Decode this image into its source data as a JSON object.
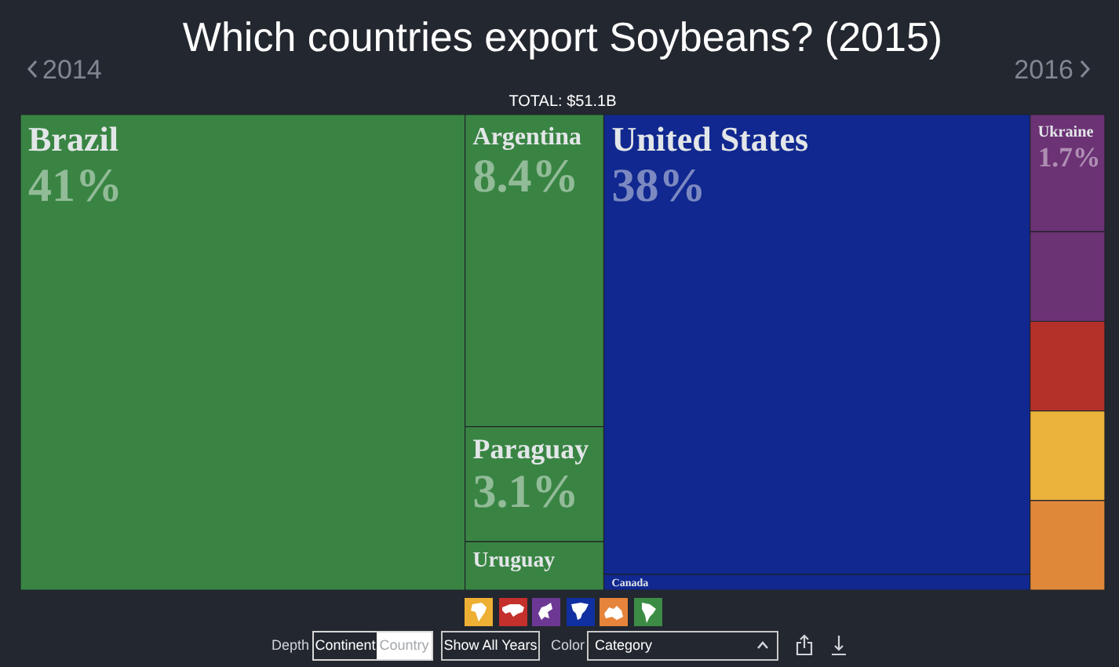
{
  "chart_data": {
    "type": "other",
    "title": "Which countries export Soybeans? (2015)",
    "subtitle": "TOTAL: $51.1B",
    "categories": [
      "Brazil",
      "Argentina",
      "Paraguay",
      "Uruguay",
      "United States",
      "Canada",
      "Ukraine",
      null,
      null,
      null,
      null
    ],
    "values": [
      41,
      8.4,
      3.1,
      null,
      38,
      null,
      1.7,
      null,
      null,
      null,
      null
    ],
    "value_labels": [
      "41%",
      "8.4%",
      "3.1%",
      null,
      "38%",
      null,
      "1.7%",
      null,
      null,
      null,
      null
    ],
    "colors": [
      "#398443",
      "#398443",
      "#398443",
      "#398443",
      "#10288f",
      "#10288f",
      "#6b3274",
      "#6b3274",
      "#b4312a",
      "#ebb23c",
      "#e0883a"
    ],
    "annotations": [
      "2014",
      "2016",
      "Depth",
      "Continent",
      "Country",
      "Show All Years",
      "Color",
      "Category"
    ]
  }
}
